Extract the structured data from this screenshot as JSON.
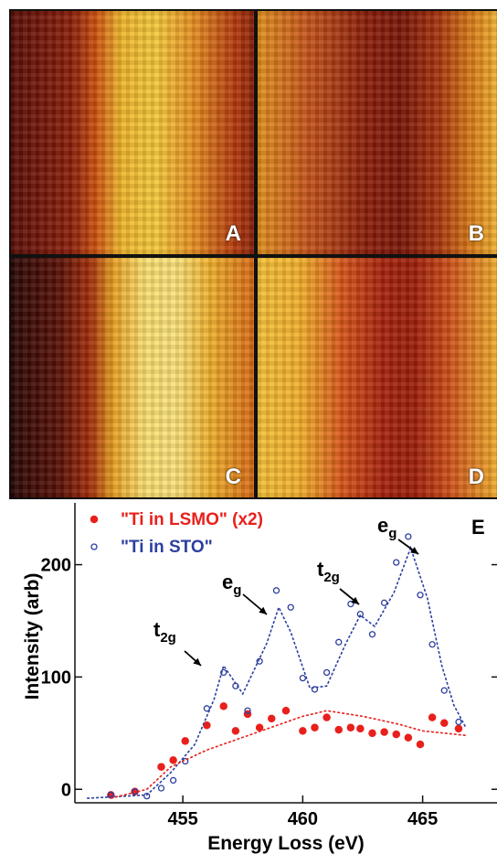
{
  "panels": [
    "A",
    "B",
    "C",
    "D"
  ],
  "chart_data": {
    "type": "scatter",
    "panel_label": "E",
    "xlabel": "Energy Loss (eV)",
    "ylabel": "Intensity (arb)",
    "xlim": [
      450.5,
      468.1
    ],
    "ylim": [
      -12,
      255
    ],
    "xticks": [
      455,
      460,
      465
    ],
    "yticks": [
      0,
      100,
      200
    ],
    "annotations": [
      {
        "text": "t",
        "sub": "2g"
      },
      {
        "text": "e",
        "sub": "g"
      },
      {
        "text": "t",
        "sub": "2g"
      },
      {
        "text": "e",
        "sub": "g"
      }
    ],
    "series": [
      {
        "name": "\"Ti in LSMO\" (x2)",
        "color": "#e8201c",
        "style": "filled",
        "x": [
          452.0,
          453.0,
          454.1,
          454.6,
          455.1,
          456.0,
          456.7,
          457.2,
          457.7,
          458.2,
          458.7,
          459.3,
          460.0,
          460.5,
          461.0,
          461.5,
          462.0,
          462.4,
          462.9,
          463.4,
          463.9,
          464.4,
          464.9,
          465.4,
          465.9,
          466.5
        ],
        "values": [
          -5,
          -2,
          20,
          26,
          43,
          57,
          74,
          52,
          67,
          55,
          63,
          70,
          52,
          55,
          64,
          53,
          55,
          54,
          50,
          51,
          49,
          46,
          40,
          64,
          59,
          54
        ]
      },
      {
        "name": "\"Ti in STO\"",
        "color": "#2c3fa0",
        "style": "open",
        "x": [
          452.0,
          453.0,
          453.5,
          454.1,
          454.6,
          455.1,
          456.0,
          456.7,
          457.2,
          457.7,
          458.2,
          458.9,
          459.5,
          460.0,
          460.5,
          461.0,
          461.5,
          462.0,
          462.4,
          462.9,
          463.4,
          463.9,
          464.4,
          464.9,
          465.4,
          465.9,
          466.5
        ],
        "values": [
          -5,
          -2,
          -6,
          1,
          8,
          25,
          72,
          104,
          92,
          70,
          114,
          177,
          162,
          99,
          89,
          104,
          131,
          165,
          156,
          138,
          166,
          202,
          225,
          173,
          129,
          88,
          60
        ]
      },
      {
        "color": "#2c3fa0",
        "style": "dashed",
        "x": [
          451.0,
          453.5,
          454.5,
          455.5,
          456.3,
          456.7,
          457.5,
          458.5,
          459.0,
          459.5,
          460.3,
          461.0,
          461.8,
          462.4,
          463.0,
          463.8,
          464.5,
          465.2,
          465.8,
          466.3,
          466.8
        ],
        "values": [
          -8,
          -5,
          15,
          40,
          80,
          110,
          85,
          130,
          162,
          140,
          90,
          92,
          130,
          155,
          145,
          175,
          215,
          170,
          110,
          75,
          55
        ]
      },
      {
        "color": "#e8201c",
        "style": "dashed",
        "x": [
          452.0,
          453.5,
          454.5,
          456.0,
          458.0,
          460.0,
          461.0,
          462.5,
          464.0,
          465.0,
          466.8
        ],
        "values": [
          -8,
          0,
          20,
          35,
          50,
          65,
          70,
          65,
          58,
          52,
          48
        ]
      }
    ]
  }
}
